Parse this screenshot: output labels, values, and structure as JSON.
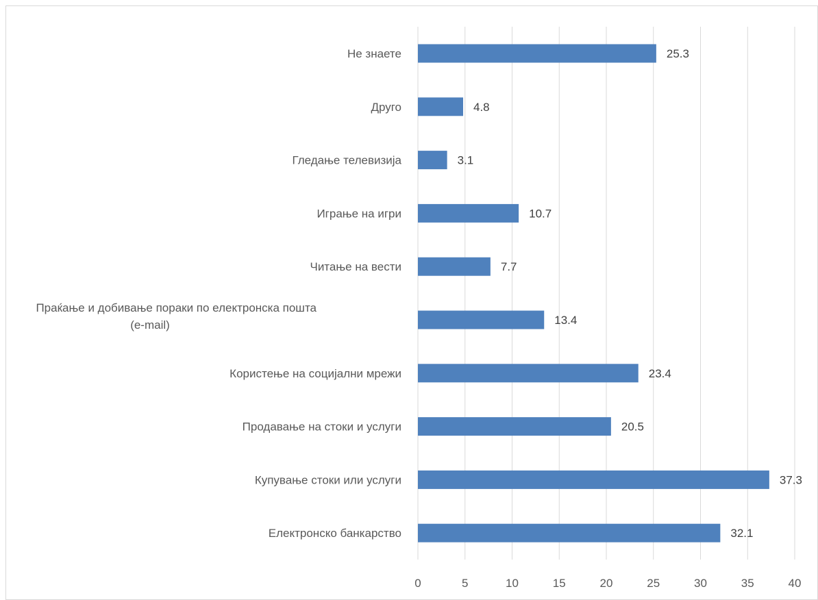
{
  "header": {
    "partial_text": ""
  },
  "chart_data": {
    "type": "bar",
    "orientation": "horizontal",
    "title": "",
    "xlabel": "",
    "ylabel": "",
    "categories": [
      "Не знаете",
      "Друго",
      "Гледање телевизија",
      "Играње на игри",
      "Читање на вести",
      "Праќање и добивање пораки по електронска пошта (e-mail)",
      "Користење на социјални мрежи",
      "Продавање на стоки и услуги",
      "Купување стоки или услуги",
      "Електронско банкарство"
    ],
    "category_lines": [
      [
        "Не знаете"
      ],
      [
        "Друго"
      ],
      [
        "Гледање телевизија"
      ],
      [
        "Играње на игри"
      ],
      [
        "Читање на вести"
      ],
      [
        "Праќање и добивање пораки по електронска пошта",
        "(e-mail)"
      ],
      [
        "Користење на социјални мрежи"
      ],
      [
        "Продавање на стоки и услуги"
      ],
      [
        "Купување стоки или услуги"
      ],
      [
        "Електронско банкарство"
      ]
    ],
    "values": [
      25.3,
      4.8,
      3.1,
      10.7,
      7.7,
      13.4,
      23.4,
      20.5,
      37.3,
      32.1
    ],
    "value_labels": [
      "25.3",
      "4.8",
      "3.1",
      "10.7",
      "7.7",
      "13.4",
      "23.4",
      "20.5",
      "37.3",
      "32.1"
    ],
    "xlim": [
      0,
      40
    ],
    "ticks": [
      0,
      5,
      10,
      15,
      20,
      25,
      30,
      35,
      40
    ],
    "tick_labels": [
      "0",
      "5",
      "10",
      "15",
      "20",
      "25",
      "30",
      "35",
      "40"
    ],
    "grid": "vertical",
    "legend": "none",
    "colors": {
      "bar": "#4f81bd",
      "grid": "#d9d9d9",
      "text": "#595959"
    }
  }
}
